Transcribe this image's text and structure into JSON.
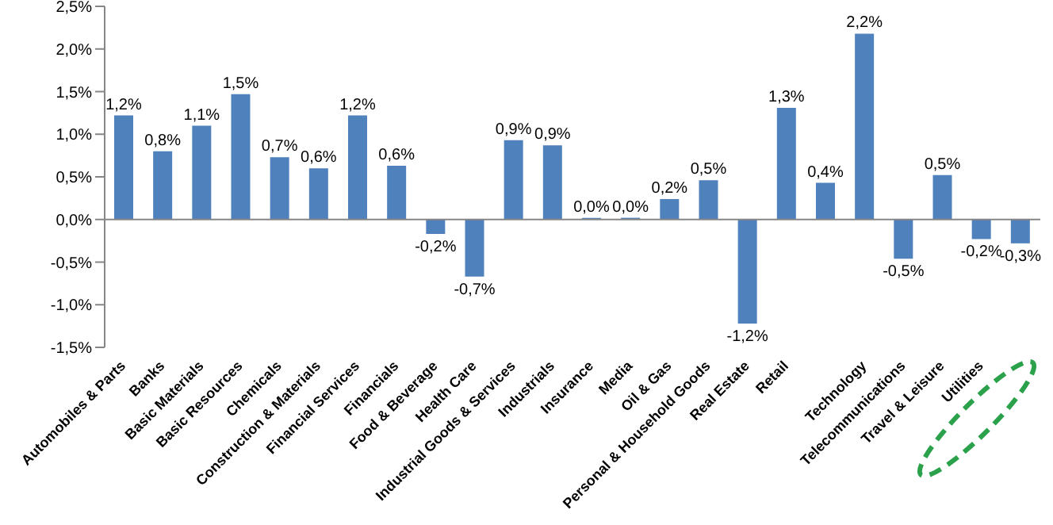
{
  "chart_data": {
    "type": "bar",
    "categories": [
      "Automobiles & Parts",
      "Banks",
      "Basic Materials",
      "Basic Resources",
      "Chemicals",
      "Construction & Materials",
      "Financial Services",
      "Financials",
      "Food & Beverage",
      "Health Care",
      "Industrial Goods & Services",
      "Industrials",
      "Insurance",
      "Media",
      "Oil & Gas",
      "Personal & Household Goods",
      "Real Estate",
      "Retail",
      null,
      "Technology",
      "Telecommunications",
      "Travel & Leisure",
      "Utilities",
      null
    ],
    "values": [
      1.22,
      0.8,
      1.1,
      1.47,
      0.73,
      0.6,
      1.22,
      0.63,
      -0.17,
      -0.67,
      0.93,
      0.87,
      0.0,
      0.02,
      0.24,
      0.46,
      -1.22,
      1.31,
      0.43,
      2.18,
      -0.46,
      0.52,
      -0.23,
      -0.28
    ],
    "value_labels": [
      "1,2%",
      "0,8%",
      "1,1%",
      "1,5%",
      "0,7%",
      "0,6%",
      "1,2%",
      "0,6%",
      "-0,2%",
      "-0,7%",
      "0,9%",
      "0,9%",
      "0,0%",
      "0,0%",
      "0,2%",
      "0,5%",
      "-1,2%",
      "1,3%",
      "0,4%",
      "2,2%",
      "-0,5%",
      "0,5%",
      "-0,2%",
      "-0,3%"
    ],
    "color": "#4f81bd",
    "ylim": [
      -1.5,
      2.5
    ],
    "yticks": [
      {
        "value": -1.5,
        "label": "-1,5%"
      },
      {
        "value": -1,
        "label": "-1,0%"
      },
      {
        "value": -0.5,
        "label": "-0,5%"
      },
      {
        "value": 0,
        "label": "0,0%"
      },
      {
        "value": 0.5,
        "label": "0,5%"
      },
      {
        "value": 1,
        "label": "1,0%"
      },
      {
        "value": 1.5,
        "label": "1,5%"
      },
      {
        "value": 2,
        "label": "2,0%"
      },
      {
        "value": 2.5,
        "label": "2,5%"
      }
    ],
    "ref_lines": [
      {
        "axis": "y",
        "value": 0,
        "color": "#868686"
      }
    ],
    "grid": false,
    "legend": false
  }
}
